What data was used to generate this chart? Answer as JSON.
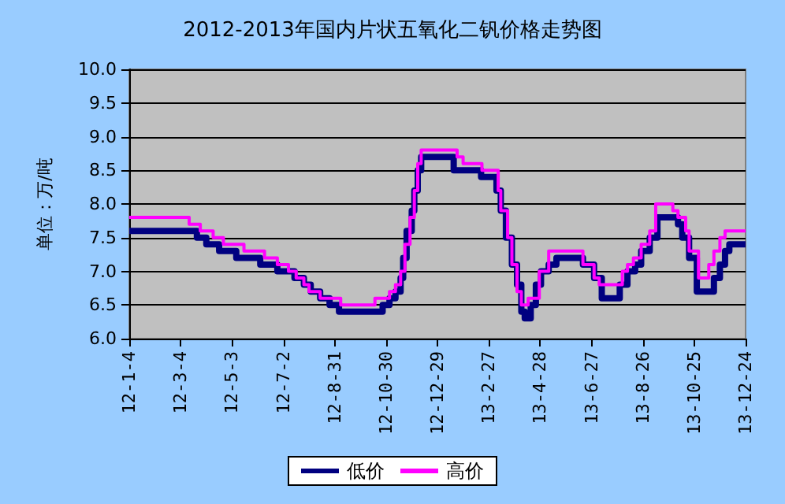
{
  "chart_data": {
    "type": "step",
    "title": "2012-2013年国内片状五氧化二钒价格走势图",
    "ylabel": "单位：万/吨",
    "xlim": [
      "2012-01-04",
      "2013-12-24"
    ],
    "xticks": [
      {
        "value": "2012-01-04",
        "label": "12-1-4"
      },
      {
        "value": "2012-03-04",
        "label": "12-3-4"
      },
      {
        "value": "2012-05-03",
        "label": "12-5-3"
      },
      {
        "value": "2012-07-02",
        "label": "12-7-2"
      },
      {
        "value": "2012-08-31",
        "label": "12-8-31"
      },
      {
        "value": "2012-10-30",
        "label": "12-10-30"
      },
      {
        "value": "2012-12-29",
        "label": "12-12-29"
      },
      {
        "value": "2013-02-27",
        "label": "13-2-27"
      },
      {
        "value": "2013-04-28",
        "label": "13-4-28"
      },
      {
        "value": "2013-06-27",
        "label": "13-6-27"
      },
      {
        "value": "2013-08-26",
        "label": "13-8-26"
      },
      {
        "value": "2013-10-25",
        "label": "13-10-25"
      },
      {
        "value": "2013-12-24",
        "label": "13-12-24"
      }
    ],
    "ylim": [
      6,
      10
    ],
    "yticks": [
      {
        "value": 6,
        "label": "6.0"
      },
      {
        "value": 6.5,
        "label": "6.5"
      },
      {
        "value": 7,
        "label": "7.0"
      },
      {
        "value": 7.5,
        "label": "7.5"
      },
      {
        "value": 8,
        "label": "8.0"
      },
      {
        "value": 8.5,
        "label": "8.5"
      },
      {
        "value": 9,
        "label": "9.0"
      },
      {
        "value": 9.5,
        "label": "9.5"
      },
      {
        "value": 10,
        "label": "10.0"
      }
    ],
    "grid": "y",
    "legend": "bottom",
    "marker": "none",
    "line_style": "solid",
    "series": [
      {
        "name": "低价",
        "color": "#000080",
        "x": [
          "2012-01-04",
          "2012-03-23",
          "2012-04-03",
          "2012-04-18",
          "2012-05-08",
          "2012-06-05",
          "2012-06-25",
          "2012-07-15",
          "2012-07-26",
          "2012-08-03",
          "2012-08-14",
          "2012-08-25",
          "2012-09-05",
          "2012-10-26",
          "2012-11-03",
          "2012-11-10",
          "2012-11-16",
          "2012-11-19",
          "2012-11-23",
          "2012-11-29",
          "2012-12-02",
          "2012-12-06",
          "2012-12-10",
          "2013-01-17",
          "2013-02-18",
          "2013-03-08",
          "2013-03-13",
          "2013-03-19",
          "2013-03-26",
          "2013-04-01",
          "2013-04-06",
          "2013-04-10",
          "2013-04-17",
          "2013-04-23",
          "2013-04-29",
          "2013-05-08",
          "2013-05-17",
          "2013-06-17",
          "2013-06-30",
          "2013-07-09",
          "2013-07-30",
          "2013-08-08",
          "2013-08-17",
          "2013-08-24",
          "2013-09-03",
          "2013-09-12",
          "2013-10-06",
          "2013-10-11",
          "2013-10-19",
          "2013-10-28",
          "2013-11-17",
          "2013-11-24",
          "2013-11-30",
          "2013-12-05",
          "2013-12-24"
        ],
        "values": [
          7.6,
          7.5,
          7.4,
          7.3,
          7.2,
          7.1,
          7.0,
          6.9,
          6.8,
          6.7,
          6.6,
          6.5,
          6.4,
          6.5,
          6.6,
          6.7,
          6.9,
          7.2,
          7.6,
          7.9,
          8.2,
          8.5,
          8.7,
          8.5,
          8.4,
          8.2,
          7.9,
          7.5,
          7.1,
          6.8,
          6.4,
          6.3,
          6.5,
          6.8,
          7.0,
          7.1,
          7.2,
          7.1,
          6.9,
          6.6,
          6.8,
          7.0,
          7.1,
          7.3,
          7.5,
          7.8,
          7.7,
          7.5,
          7.2,
          6.7,
          6.9,
          7.1,
          7.3,
          7.4,
          7.4
        ]
      },
      {
        "name": "高价",
        "color": "#ff00ff",
        "x": [
          "2012-01-04",
          "2012-03-14",
          "2012-03-27",
          "2012-04-11",
          "2012-04-23",
          "2012-05-17",
          "2012-06-10",
          "2012-06-25",
          "2012-07-08",
          "2012-07-17",
          "2012-07-26",
          "2012-08-01",
          "2012-08-14",
          "2012-09-07",
          "2012-10-17",
          "2012-11-03",
          "2012-11-10",
          "2012-11-16",
          "2012-11-21",
          "2012-11-27",
          "2012-12-02",
          "2012-12-06",
          "2012-12-10",
          "2013-01-21",
          "2013-01-28",
          "2013-02-19",
          "2013-03-10",
          "2013-03-13",
          "2013-03-21",
          "2013-03-26",
          "2013-04-01",
          "2013-04-06",
          "2013-04-14",
          "2013-04-27",
          "2013-05-08",
          "2013-06-17",
          "2013-06-30",
          "2013-07-06",
          "2013-08-02",
          "2013-08-08",
          "2013-08-15",
          "2013-08-24",
          "2013-09-03",
          "2013-09-10",
          "2013-09-30",
          "2013-10-06",
          "2013-10-15",
          "2013-10-19",
          "2013-10-30",
          "2013-11-11",
          "2013-11-17",
          "2013-11-24",
          "2013-11-30",
          "2013-12-24"
        ],
        "values": [
          7.8,
          7.7,
          7.6,
          7.5,
          7.4,
          7.3,
          7.2,
          7.1,
          7.0,
          6.9,
          6.8,
          6.7,
          6.6,
          6.5,
          6.6,
          6.7,
          6.8,
          7.0,
          7.4,
          7.8,
          8.2,
          8.6,
          8.8,
          8.7,
          8.6,
          8.5,
          8.2,
          7.9,
          7.5,
          7.1,
          6.7,
          6.5,
          6.6,
          7.0,
          7.3,
          7.1,
          6.9,
          6.8,
          7.0,
          7.1,
          7.2,
          7.4,
          7.6,
          8.0,
          7.9,
          7.8,
          7.6,
          7.3,
          6.9,
          7.1,
          7.3,
          7.5,
          7.6,
          7.6
        ]
      }
    ]
  }
}
